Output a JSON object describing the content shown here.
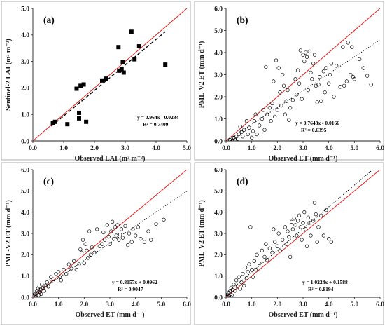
{
  "colors": {
    "one_to_one": "#e8201c",
    "fit": "#000000",
    "frame": "#9a9a9a",
    "points": "#000000"
  },
  "chart_data": [
    {
      "type": "scatter",
      "panel_label": "(a)",
      "xlabel": "Observed LAI (m² m⁻²)",
      "ylabel": "Sentinel-2 LAI (m² m⁻²)",
      "xlim": [
        0,
        5
      ],
      "ylim": [
        0,
        5
      ],
      "xticks": [
        "0.0",
        "1.0",
        "2.0",
        "3.0",
        "4.0",
        "5.0"
      ],
      "yticks": [
        "0.0",
        "1.0",
        "2.0",
        "3.0",
        "4.0",
        "5.0"
      ],
      "grid": false,
      "marker": "filled-square",
      "fit_style": "dashed",
      "equation": "y = 0.964x - 0.0234",
      "r2_text": "R² = 0.7409",
      "fit": {
        "slope": 0.964,
        "intercept": -0.0234
      },
      "points": [
        [
          0.65,
          0.68
        ],
        [
          0.72,
          0.72
        ],
        [
          1.12,
          0.63
        ],
        [
          1.42,
          1.97
        ],
        [
          1.5,
          0.85
        ],
        [
          1.5,
          1.06
        ],
        [
          1.55,
          2.08
        ],
        [
          1.65,
          2.13
        ],
        [
          1.73,
          0.72
        ],
        [
          2.25,
          2.28
        ],
        [
          2.38,
          2.35
        ],
        [
          2.78,
          3.54
        ],
        [
          2.8,
          2.65
        ],
        [
          2.88,
          2.7
        ],
        [
          2.92,
          2.98
        ],
        [
          2.95,
          2.58
        ],
        [
          3.2,
          4.12
        ],
        [
          3.3,
          3.08
        ],
        [
          3.45,
          3.57
        ],
        [
          4.3,
          2.88
        ]
      ]
    },
    {
      "type": "scatter",
      "panel_label": "(b)",
      "xlabel": "Observed ET (mm d⁻¹)",
      "ylabel": "PML-V2 ET (mm d⁻¹)",
      "xlim": [
        0,
        6
      ],
      "ylim": [
        0,
        6
      ],
      "xticks": [
        "0.0",
        "1.0",
        "2.0",
        "3.0",
        "4.0",
        "5.0",
        "6.0"
      ],
      "yticks": [
        "0.0",
        "1.0",
        "2.0",
        "3.0",
        "4.0",
        "5.0",
        "6.0"
      ],
      "grid": false,
      "marker": "open-circle",
      "fit_style": "dotted",
      "equation": "y = 0.7648x - 0.0166",
      "r2_text": "R² = 0.6395",
      "fit": {
        "slope": 0.7648,
        "intercept": -0.0166
      },
      "points": [
        [
          0.15,
          0.05
        ],
        [
          0.2,
          0.1
        ],
        [
          0.25,
          0.02
        ],
        [
          0.3,
          0.15
        ],
        [
          0.35,
          0.05
        ],
        [
          0.4,
          0.2
        ],
        [
          0.45,
          0.1
        ],
        [
          0.5,
          0.3
        ],
        [
          0.55,
          0.65
        ],
        [
          0.6,
          0.4
        ],
        [
          0.65,
          0.2
        ],
        [
          0.7,
          0.5
        ],
        [
          0.8,
          0.9
        ],
        [
          0.85,
          0.3
        ],
        [
          0.9,
          0.6
        ],
        [
          1.0,
          0.15
        ],
        [
          1.05,
          0.45
        ],
        [
          1.1,
          0.9
        ],
        [
          1.15,
          1.2
        ],
        [
          1.2,
          0.3
        ],
        [
          1.3,
          0.7
        ],
        [
          1.4,
          1.0
        ],
        [
          1.45,
          1.4
        ],
        [
          1.5,
          0.5
        ],
        [
          1.55,
          3.35
        ],
        [
          1.6,
          1.2
        ],
        [
          1.7,
          1.5
        ],
        [
          1.75,
          0.9
        ],
        [
          1.8,
          1.7
        ],
        [
          1.85,
          2.7
        ],
        [
          1.9,
          1.1
        ],
        [
          1.95,
          3.65
        ],
        [
          2.0,
          1.4
        ],
        [
          2.05,
          3.3
        ],
        [
          2.1,
          2.2
        ],
        [
          2.15,
          1.6
        ],
        [
          2.2,
          3.0
        ],
        [
          2.25,
          2.5
        ],
        [
          2.3,
          1.2
        ],
        [
          2.35,
          1.8
        ],
        [
          2.4,
          2.3
        ],
        [
          2.45,
          0.95
        ],
        [
          2.5,
          1.5
        ],
        [
          2.6,
          1.85
        ],
        [
          2.7,
          2.8
        ],
        [
          2.75,
          2.1
        ],
        [
          2.8,
          3.2
        ],
        [
          2.85,
          2.6
        ],
        [
          2.9,
          4.1
        ],
        [
          2.95,
          1.9
        ],
        [
          3.0,
          3.9
        ],
        [
          3.05,
          3.6
        ],
        [
          3.1,
          4.0
        ],
        [
          3.15,
          3.8
        ],
        [
          3.2,
          2.3
        ],
        [
          3.25,
          4.05
        ],
        [
          3.3,
          3.1
        ],
        [
          3.35,
          2.8
        ],
        [
          3.4,
          3.5
        ],
        [
          3.45,
          3.9
        ],
        [
          3.5,
          2.5
        ],
        [
          3.55,
          1.75
        ],
        [
          3.6,
          2.55
        ],
        [
          3.65,
          2.9
        ],
        [
          3.7,
          1.8
        ],
        [
          3.8,
          3.15
        ],
        [
          3.85,
          2.2
        ],
        [
          3.9,
          3.3
        ],
        [
          4.0,
          2.6
        ],
        [
          4.05,
          3.0
        ],
        [
          4.1,
          3.5
        ],
        [
          4.2,
          2.0
        ],
        [
          4.3,
          3.4
        ],
        [
          4.45,
          2.45
        ],
        [
          4.55,
          4.25
        ],
        [
          4.6,
          2.5
        ],
        [
          4.7,
          2.7
        ],
        [
          4.75,
          4.45
        ],
        [
          4.85,
          3.0
        ],
        [
          4.9,
          4.25
        ],
        [
          4.95,
          2.9
        ],
        [
          5.0,
          2.8
        ],
        [
          5.2,
          3.7
        ],
        [
          5.35,
          3.3
        ],
        [
          5.5,
          2.95
        ],
        [
          5.65,
          2.55
        ]
      ]
    },
    {
      "type": "scatter",
      "panel_label": "(c)",
      "xlabel": "Observed ET (mm d⁻¹)",
      "ylabel": "PML-V2 ET (mm d⁻¹)",
      "xlim": [
        0,
        6
      ],
      "ylim": [
        0,
        6
      ],
      "xticks": [
        "0.0",
        "1.0",
        "2.0",
        "3.0",
        "4.0",
        "5.0",
        "6.0"
      ],
      "yticks": [
        "0.0",
        "1.0",
        "2.0",
        "3.0",
        "4.0",
        "5.0",
        "6.0"
      ],
      "grid": false,
      "marker": "open-circle",
      "fit_style": "dotted",
      "equation": "y = 0.8157x + 0.0962",
      "r2_text": "R² = 0.9047",
      "fit": {
        "slope": 0.8157,
        "intercept": 0.0962
      },
      "points": [
        [
          0.05,
          0.05
        ],
        [
          0.08,
          0.15
        ],
        [
          0.1,
          0.1
        ],
        [
          0.12,
          0.02
        ],
        [
          0.15,
          0.3
        ],
        [
          0.18,
          0.2
        ],
        [
          0.2,
          0.4
        ],
        [
          0.22,
          0.1
        ],
        [
          0.25,
          0.5
        ],
        [
          0.28,
          0.25
        ],
        [
          0.3,
          0.35
        ],
        [
          0.32,
          0.15
        ],
        [
          0.35,
          0.6
        ],
        [
          0.4,
          0.45
        ],
        [
          0.45,
          0.3
        ],
        [
          0.5,
          0.55
        ],
        [
          0.55,
          0.7
        ],
        [
          0.6,
          0.5
        ],
        [
          0.65,
          0.75
        ],
        [
          0.7,
          0.95
        ],
        [
          0.8,
          0.85
        ],
        [
          0.9,
          1.1
        ],
        [
          1.0,
          1.2
        ],
        [
          1.05,
          0.95
        ],
        [
          1.1,
          0.8
        ],
        [
          1.2,
          1.3
        ],
        [
          1.3,
          1.1
        ],
        [
          1.4,
          1.55
        ],
        [
          1.5,
          1.35
        ],
        [
          1.6,
          1.7
        ],
        [
          1.7,
          1.3
        ],
        [
          1.8,
          1.55
        ],
        [
          1.85,
          2.25
        ],
        [
          1.9,
          2.1
        ],
        [
          1.95,
          2.7
        ],
        [
          2.0,
          1.6
        ],
        [
          2.05,
          2.5
        ],
        [
          2.1,
          2.2
        ],
        [
          2.15,
          1.85
        ],
        [
          2.2,
          3.1
        ],
        [
          2.25,
          2.0
        ],
        [
          2.3,
          2.35
        ],
        [
          2.4,
          2.1
        ],
        [
          2.5,
          3.2
        ],
        [
          2.6,
          2.4
        ],
        [
          2.7,
          2.5
        ],
        [
          2.75,
          3.05
        ],
        [
          2.8,
          2.7
        ],
        [
          2.9,
          3.4
        ],
        [
          2.95,
          2.85
        ],
        [
          3.0,
          2.5
        ],
        [
          3.05,
          3.1
        ],
        [
          3.1,
          3.55
        ],
        [
          3.15,
          2.75
        ],
        [
          3.2,
          3.3
        ],
        [
          3.25,
          2.9
        ],
        [
          3.3,
          3.4
        ],
        [
          3.35,
          2.7
        ],
        [
          3.4,
          2.95
        ],
        [
          3.45,
          3.2
        ],
        [
          3.5,
          2.8
        ],
        [
          3.6,
          3.35
        ],
        [
          3.7,
          2.45
        ],
        [
          3.75,
          3.0
        ],
        [
          3.85,
          2.6
        ],
        [
          3.9,
          3.2
        ],
        [
          4.0,
          2.9
        ],
        [
          4.1,
          3.3
        ],
        [
          4.2,
          2.75
        ],
        [
          4.35,
          2.6
        ],
        [
          4.5,
          3.1
        ],
        [
          4.6,
          2.7
        ],
        [
          4.8,
          3.45
        ],
        [
          5.1,
          3.65
        ]
      ]
    },
    {
      "type": "scatter",
      "panel_label": "(d)",
      "xlabel": "Observed ET (mm d⁻¹)",
      "ylabel": "PML-V2 ET (mm d⁻¹)",
      "xlim": [
        0,
        6
      ],
      "ylim": [
        0,
        6
      ],
      "xticks": [
        "0.0",
        "1.0",
        "2.0",
        "3.0",
        "4.0",
        "5.0",
        "6.0"
      ],
      "yticks": [
        "0.0",
        "1.0",
        "2.0",
        "3.0",
        "4.0",
        "5.0",
        "6.0"
      ],
      "grid": false,
      "marker": "open-circle",
      "fit_style": "dotted",
      "equation": "y = 1.0224x + 0.1588",
      "r2_text": "R² = 0.8194",
      "fit": {
        "slope": 1.0224,
        "intercept": 0.1588
      },
      "points": [
        [
          0.05,
          0.02
        ],
        [
          0.08,
          0.1
        ],
        [
          0.1,
          0.2
        ],
        [
          0.12,
          0.05
        ],
        [
          0.15,
          0.3
        ],
        [
          0.18,
          0.15
        ],
        [
          0.2,
          0.45
        ],
        [
          0.22,
          0.1
        ],
        [
          0.25,
          0.35
        ],
        [
          0.3,
          0.6
        ],
        [
          0.35,
          0.3
        ],
        [
          0.4,
          0.8
        ],
        [
          0.45,
          0.5
        ],
        [
          0.5,
          0.95
        ],
        [
          0.55,
          0.4
        ],
        [
          0.6,
          0.7
        ],
        [
          0.65,
          1.1
        ],
        [
          0.7,
          0.55
        ],
        [
          0.75,
          1.4
        ],
        [
          0.8,
          0.9
        ],
        [
          0.85,
          1.2
        ],
        [
          0.9,
          1.55
        ],
        [
          0.95,
          3.3
        ],
        [
          1.0,
          1.3
        ],
        [
          1.05,
          0.95
        ],
        [
          1.1,
          1.7
        ],
        [
          1.15,
          1.3
        ],
        [
          1.2,
          2.0
        ],
        [
          1.3,
          1.6
        ],
        [
          1.4,
          2.2
        ],
        [
          1.5,
          1.9
        ],
        [
          1.55,
          2.5
        ],
        [
          1.6,
          1.75
        ],
        [
          1.7,
          2.3
        ],
        [
          1.8,
          2.1
        ],
        [
          1.85,
          3.2
        ],
        [
          1.9,
          2.6
        ],
        [
          2.0,
          2.4
        ],
        [
          2.05,
          3.0
        ],
        [
          2.1,
          2.2
        ],
        [
          2.2,
          2.7
        ],
        [
          2.3,
          3.3
        ],
        [
          2.35,
          2.5
        ],
        [
          2.4,
          3.1
        ],
        [
          2.45,
          2.85
        ],
        [
          2.5,
          1.9
        ],
        [
          2.55,
          3.55
        ],
        [
          2.6,
          3.2
        ],
        [
          2.65,
          3.7
        ],
        [
          2.7,
          3.4
        ],
        [
          2.75,
          2.9
        ],
        [
          2.8,
          3.6
        ],
        [
          2.85,
          3.85
        ],
        [
          2.9,
          3.3
        ],
        [
          2.95,
          2.7
        ],
        [
          3.0,
          3.5
        ],
        [
          3.05,
          4.0
        ],
        [
          3.1,
          3.2
        ],
        [
          3.15,
          2.4
        ],
        [
          3.2,
          3.75
        ],
        [
          3.25,
          3.5
        ],
        [
          3.3,
          2.9
        ],
        [
          3.4,
          3.6
        ],
        [
          3.45,
          4.45
        ],
        [
          3.5,
          3.9
        ],
        [
          3.55,
          2.6
        ],
        [
          3.6,
          3.3
        ],
        [
          3.7,
          3.85
        ],
        [
          3.8,
          2.9
        ],
        [
          3.9,
          4.1
        ],
        [
          4.0,
          2.75
        ],
        [
          4.1,
          2.6
        ]
      ]
    }
  ]
}
